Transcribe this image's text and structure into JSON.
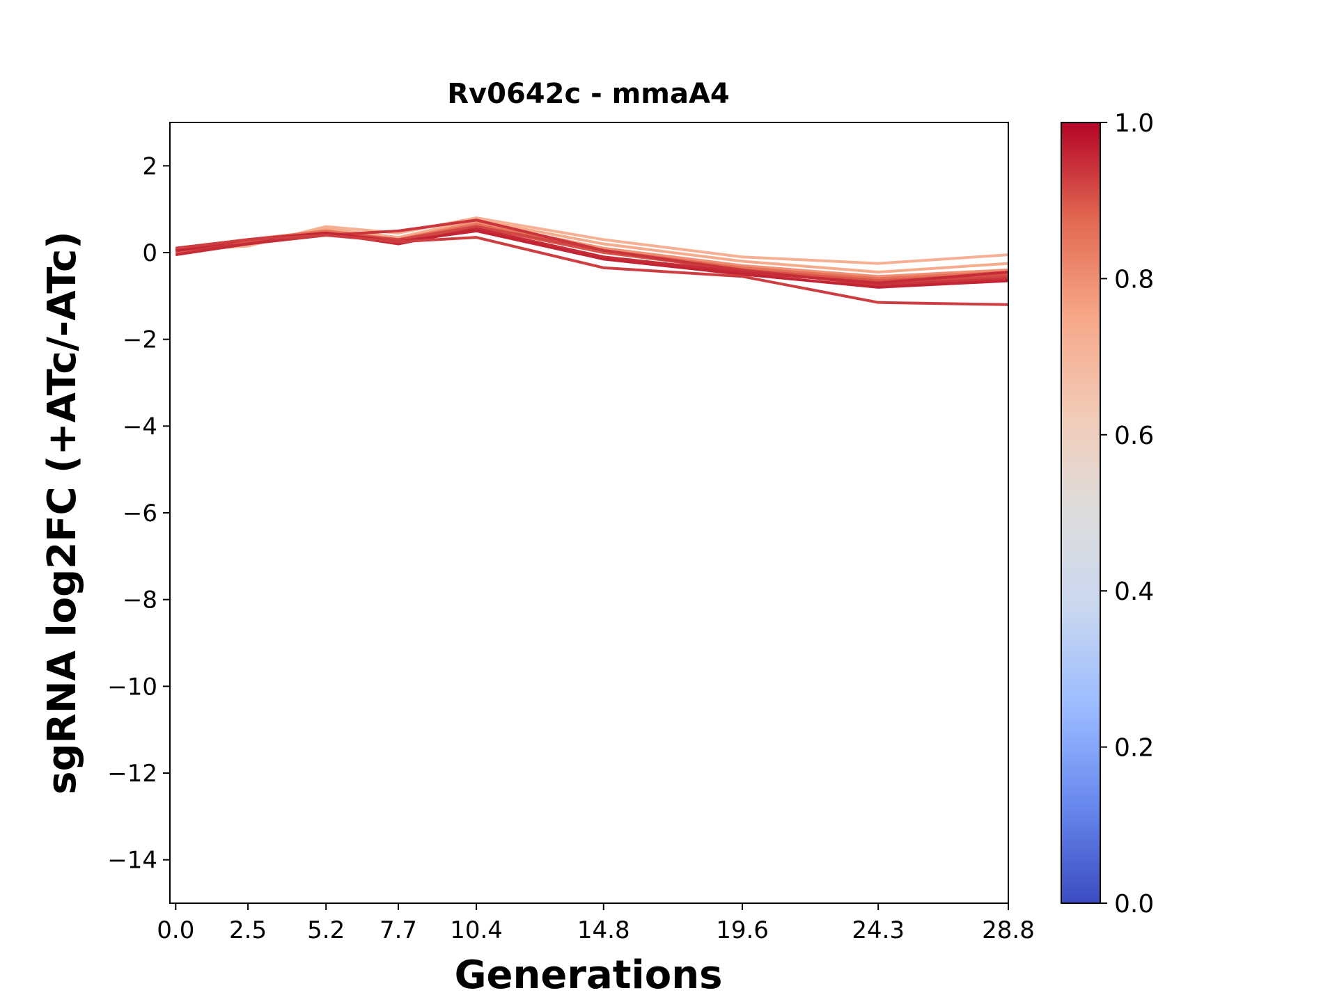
{
  "chart_data": {
    "type": "line",
    "title": "Rv0642c - mmaA4",
    "xlabel": "Generations",
    "ylabel": "sgRNA log2FC (+ATc/-ATc)",
    "x": [
      0.0,
      2.5,
      5.2,
      7.7,
      10.4,
      14.8,
      19.6,
      24.3,
      28.8
    ],
    "x_tick_labels": [
      "0.0",
      "2.5",
      "5.2",
      "7.7",
      "10.4",
      "14.8",
      "19.6",
      "24.3",
      "28.8"
    ],
    "xlim": [
      -0.2,
      28.8
    ],
    "ylim": [
      -15,
      3
    ],
    "y_ticks": [
      2,
      0,
      -2,
      -4,
      -6,
      -8,
      -10,
      -12,
      -14
    ],
    "y_tick_labels": [
      "2",
      "0",
      "−2",
      "−4",
      "−6",
      "−8",
      "−10",
      "−12",
      "−14"
    ],
    "grid": false,
    "series": [
      {
        "values": [
          0.05,
          0.15,
          0.6,
          0.45,
          0.8,
          0.3,
          -0.1,
          -0.25,
          -0.05
        ],
        "color_value": 0.72
      },
      {
        "values": [
          0.0,
          0.2,
          0.55,
          0.35,
          0.75,
          0.2,
          -0.2,
          -0.45,
          -0.25
        ],
        "color_value": 0.74
      },
      {
        "values": [
          0.05,
          0.25,
          0.5,
          0.3,
          0.7,
          0.1,
          -0.3,
          -0.55,
          -0.4
        ],
        "color_value": 0.8
      },
      {
        "values": [
          0.1,
          0.3,
          0.5,
          0.3,
          0.65,
          0.05,
          -0.35,
          -0.6,
          -0.45
        ],
        "color_value": 0.86
      },
      {
        "values": [
          0.0,
          0.25,
          0.45,
          0.25,
          0.6,
          0.0,
          -0.4,
          -0.65,
          -0.5
        ],
        "color_value": 0.9
      },
      {
        "values": [
          0.1,
          0.3,
          0.45,
          0.3,
          0.6,
          0.05,
          -0.45,
          -0.7,
          -0.55
        ],
        "color_value": 0.92
      },
      {
        "values": [
          0.05,
          0.2,
          0.4,
          0.5,
          0.75,
          0.05,
          -0.4,
          -0.75,
          -0.6
        ],
        "color_value": 0.94
      },
      {
        "values": [
          -0.05,
          0.2,
          0.45,
          0.2,
          0.55,
          -0.1,
          -0.45,
          -0.7,
          -0.45
        ],
        "color_value": 0.95
      },
      {
        "values": [
          0.05,
          0.3,
          0.45,
          0.25,
          0.5,
          -0.15,
          -0.5,
          -0.8,
          -0.65
        ],
        "color_value": 0.96
      },
      {
        "values": [
          0.1,
          0.3,
          0.4,
          0.25,
          0.35,
          -0.35,
          -0.55,
          -1.15,
          -1.2
        ],
        "color_value": 0.93
      }
    ],
    "colorbar": {
      "vmin": 0.0,
      "vmax": 1.0,
      "ticks": [
        0.0,
        0.2,
        0.4,
        0.6,
        0.8,
        1.0
      ],
      "tick_labels": [
        "0.0",
        "0.2",
        "0.4",
        "0.6",
        "0.8",
        "1.0"
      ],
      "colormap_stops": [
        "#3b4cc0",
        "#6788ee",
        "#9abbff",
        "#c9d7f0",
        "#dddddd",
        "#f2cbb7",
        "#f7a889",
        "#e26952",
        "#b40426"
      ]
    }
  }
}
